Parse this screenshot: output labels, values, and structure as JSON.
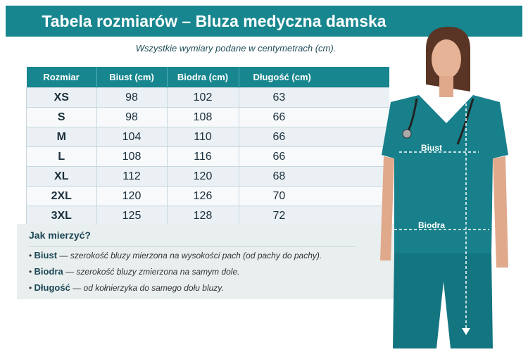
{
  "header": {
    "title": "Tabela rozmiarów – Bluza medyczna damska"
  },
  "subtitle": "Wszystkie wymiary podane w centymetrach (cm).",
  "table": {
    "columns": [
      "Rozmiar",
      "Biust (cm)",
      "Biodra (cm)",
      "Długość (cm)"
    ],
    "rows": [
      [
        "XS",
        "98",
        "102",
        "63"
      ],
      [
        "S",
        "98",
        "108",
        "66"
      ],
      [
        "M",
        "104",
        "110",
        "66"
      ],
      [
        "L",
        "108",
        "116",
        "66"
      ],
      [
        "XL",
        "112",
        "120",
        "68"
      ],
      [
        "2XL",
        "120",
        "126",
        "70"
      ],
      [
        "3XL",
        "125",
        "128",
        "72"
      ]
    ]
  },
  "how_to": {
    "title": "Jak mierzyć?",
    "items": [
      {
        "term": "Biust",
        "desc": "szerokość bluzy mierzona na wysokości pach (od pachy do pachy)."
      },
      {
        "term": "Biodra",
        "desc": "szerokość bluzy zmierzona na samym dole."
      },
      {
        "term": "Długość",
        "desc": "od kołnierzyka do samego dołu bluzy."
      }
    ]
  },
  "figure": {
    "bust_label": "Biust",
    "hip_label": "Biodra",
    "scrub_color": "#17808a"
  },
  "colors": {
    "accent": "#17868f"
  }
}
